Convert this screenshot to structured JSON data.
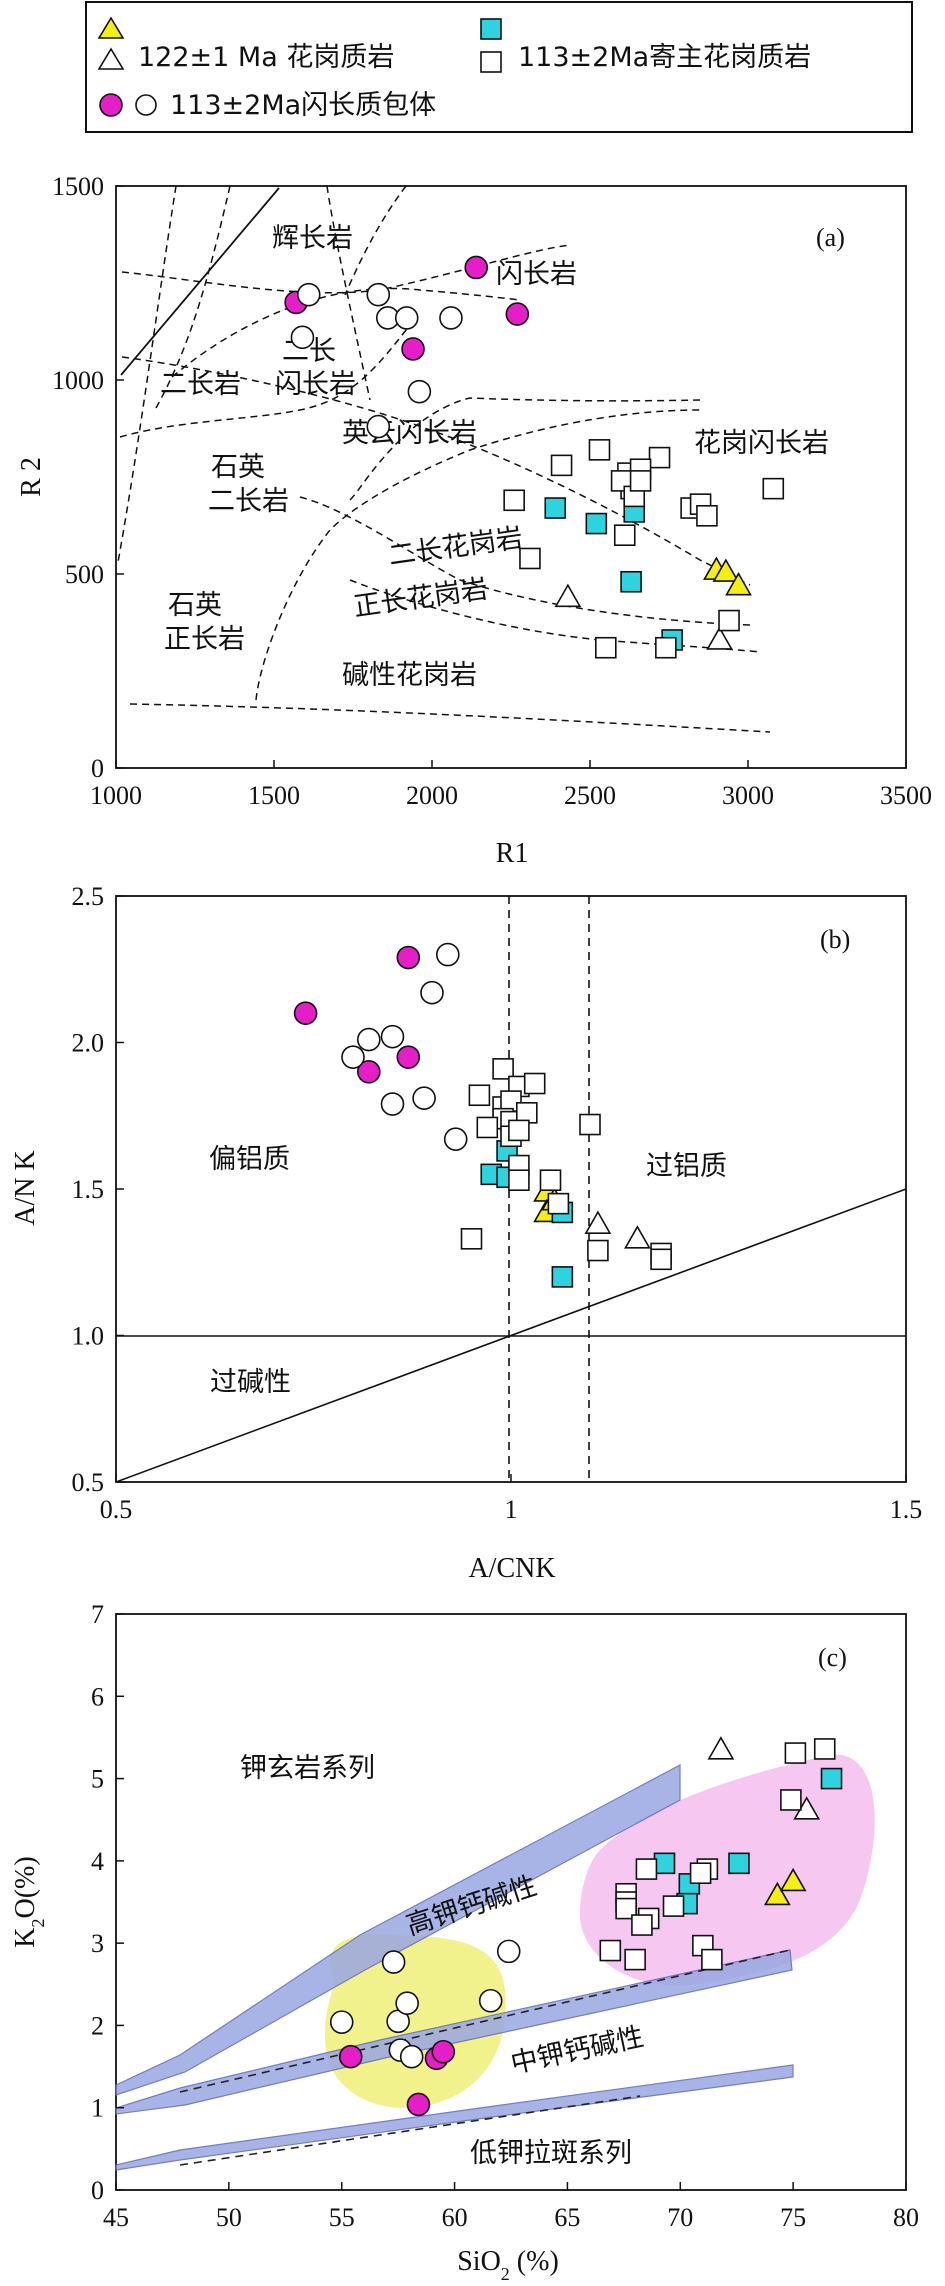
{
  "legend": {
    "entries": [
      {
        "id": "g122",
        "label": "122±1 Ma 花岗质岩"
      },
      {
        "id": "g113",
        "label": "113±2Ma寄主花岗质岩"
      },
      {
        "id": "e113",
        "label": "113±2Ma闪长质包体"
      }
    ],
    "colors": {
      "triangle_fill": "#f5ee14",
      "square_fill": "#2ed3df",
      "circle_fill": "#e61ec8"
    }
  },
  "chart_data": [
    {
      "id": "a",
      "type": "scatter",
      "panel_label": "(a)",
      "xlabel": "R1",
      "ylabel": "R 2",
      "xlim": [
        1000,
        3500
      ],
      "ylim": [
        0,
        1500
      ],
      "xticks": [
        1000,
        1500,
        2000,
        2500,
        3000,
        3500
      ],
      "yticks": [
        0,
        500,
        1000,
        1500
      ],
      "regions": [
        "辉长岩",
        "闪长岩",
        "二长岩",
        "二长",
        "闪长岩",
        "英云闪长岩",
        "花岗闪长岩",
        "石英",
        "二长岩",
        "二长花岗岩",
        "正长花岗岩",
        "石英",
        "正长岩",
        "碱性花岗岩"
      ],
      "series": [
        {
          "name": "122±1 Ma 花岗质岩 (filled)",
          "marker": "triangle",
          "filled": true,
          "points": [
            [
              2900,
              510
            ],
            [
              2930,
              505
            ],
            [
              2970,
              470
            ]
          ]
        },
        {
          "name": "122±1 Ma 花岗质岩 (open)",
          "marker": "triangle",
          "filled": false,
          "points": [
            [
              2430,
              440
            ],
            [
              2910,
              330
            ]
          ]
        },
        {
          "name": "113±2Ma寄主花岗质岩 (filled)",
          "marker": "square",
          "filled": true,
          "points": [
            [
              2390,
              670
            ],
            [
              2520,
              630
            ],
            [
              2640,
              660
            ],
            [
              2630,
              480
            ],
            [
              2760,
              330
            ]
          ]
        },
        {
          "name": "113±2Ma寄主花岗质岩 (open)",
          "marker": "square",
          "filled": false,
          "points": [
            [
              2530,
              820
            ],
            [
              2720,
              800
            ],
            [
              2410,
              780
            ],
            [
              2620,
              760
            ],
            [
              2660,
              770
            ],
            [
              2630,
              720
            ],
            [
              2600,
              740
            ],
            [
              2640,
              700
            ],
            [
              2660,
              740
            ],
            [
              2820,
              670
            ],
            [
              2850,
              680
            ],
            [
              2870,
              650
            ],
            [
              3080,
              720
            ],
            [
              2260,
              690
            ],
            [
              2310,
              540
            ],
            [
              2610,
              600
            ],
            [
              2940,
              380
            ],
            [
              2550,
              310
            ],
            [
              2740,
              310
            ]
          ]
        },
        {
          "name": "113±2Ma闪长质包体 (filled)",
          "marker": "circle",
          "filled": true,
          "points": [
            [
              1570,
              1200
            ],
            [
              2140,
              1290
            ],
            [
              2270,
              1170
            ],
            [
              1940,
              1080
            ]
          ]
        },
        {
          "name": "113±2Ma闪长质包体 (open)",
          "marker": "circle",
          "filled": false,
          "points": [
            [
              1610,
              1220
            ],
            [
              1830,
              1220
            ],
            [
              1860,
              1160
            ],
            [
              1920,
              1160
            ],
            [
              2060,
              1160
            ],
            [
              1590,
              1110
            ],
            [
              1960,
              970
            ],
            [
              1830,
              880
            ]
          ]
        }
      ]
    },
    {
      "id": "b",
      "type": "scatter",
      "panel_label": "(b)",
      "xlabel": "A/CNK",
      "ylabel": "A/N K",
      "xlim": [
        0.5,
        1.5
      ],
      "ylim": [
        0.5,
        2.5
      ],
      "xticks": [
        0.5,
        1.0,
        1.5
      ],
      "yticks": [
        0.5,
        1.0,
        1.5,
        2.0,
        2.5
      ],
      "regions": [
        "偏铝质",
        "过铝质",
        "过碱性"
      ],
      "series": [
        {
          "name": "122±1 Ma 花岗质岩 (filled)",
          "marker": "triangle",
          "filled": true,
          "points": [
            [
              1.045,
              1.49
            ],
            [
              1.045,
              1.42
            ],
            [
              1.055,
              1.46
            ]
          ]
        },
        {
          "name": "122±1 Ma 花岗质岩 (open)",
          "marker": "triangle",
          "filled": false,
          "points": [
            [
              1.11,
              1.38
            ],
            [
              1.16,
              1.33
            ]
          ]
        },
        {
          "name": "113±2Ma寄主花岗质岩 (filled)",
          "marker": "square",
          "filled": true,
          "points": [
            [
              0.995,
              1.63
            ],
            [
              0.975,
              1.55
            ],
            [
              0.995,
              1.54
            ],
            [
              1.065,
              1.42
            ],
            [
              1.065,
              1.2
            ]
          ]
        },
        {
          "name": "113±2Ma寄主花岗质岩 (open)",
          "marker": "square",
          "filled": false,
          "points": [
            [
              0.99,
              1.91
            ],
            [
              0.96,
              1.82
            ],
            [
              1.01,
              1.85
            ],
            [
              1.03,
              1.86
            ],
            [
              0.99,
              1.78
            ],
            [
              1.0,
              1.8
            ],
            [
              0.99,
              1.74
            ],
            [
              1.0,
              1.73
            ],
            [
              0.97,
              1.71
            ],
            [
              1.02,
              1.76
            ],
            [
              1.0,
              1.68
            ],
            [
              1.01,
              1.7
            ],
            [
              1.01,
              1.58
            ],
            [
              1.01,
              1.53
            ],
            [
              1.05,
              1.53
            ],
            [
              1.06,
              1.45
            ],
            [
              1.1,
              1.72
            ],
            [
              0.95,
              1.33
            ],
            [
              1.11,
              1.29
            ],
            [
              1.19,
              1.28
            ],
            [
              1.19,
              1.26
            ]
          ]
        },
        {
          "name": "113±2Ma闪长质包体 (filled)",
          "marker": "circle",
          "filled": true,
          "points": [
            [
              0.74,
              2.1
            ],
            [
              0.87,
              2.29
            ],
            [
              0.82,
              1.9
            ],
            [
              0.87,
              1.95
            ]
          ]
        },
        {
          "name": "113±2Ma闪长质包体 (open)",
          "marker": "circle",
          "filled": false,
          "points": [
            [
              0.92,
              2.3
            ],
            [
              0.9,
              2.17
            ],
            [
              0.82,
              2.01
            ],
            [
              0.85,
              2.02
            ],
            [
              0.8,
              1.95
            ],
            [
              0.89,
              1.81
            ],
            [
              0.85,
              1.79
            ],
            [
              0.93,
              1.67
            ]
          ]
        }
      ]
    },
    {
      "id": "c",
      "type": "scatter",
      "panel_label": "(c)",
      "xlabel": "SiO2 (%)",
      "ylabel": "K2O(%)",
      "xlim": [
        45,
        80
      ],
      "ylim": [
        0,
        7
      ],
      "xticks": [
        45,
        50,
        55,
        60,
        65,
        70,
        75,
        80
      ],
      "yticks": [
        0,
        1,
        2,
        3,
        4,
        5,
        6,
        7
      ],
      "regions": [
        "钾玄岩系列",
        "高钾钙碱性",
        "中钾钙碱性",
        "低钾拉斑系列"
      ],
      "series": [
        {
          "name": "122±1 Ma 花岗质岩 (filled)",
          "marker": "triangle",
          "filled": true,
          "points": [
            [
              74.3,
              3.58
            ],
            [
              75.0,
              3.75
            ]
          ]
        },
        {
          "name": "122±1 Ma 花岗质岩 (open)",
          "marker": "triangle",
          "filled": false,
          "points": [
            [
              71.8,
              5.35
            ],
            [
              75.6,
              4.62
            ]
          ]
        },
        {
          "name": "113±2Ma寄主花岗质岩 (filled)",
          "marker": "square",
          "filled": true,
          "points": [
            [
              69.3,
              3.97
            ],
            [
              70.4,
              3.72
            ],
            [
              70.3,
              3.48
            ],
            [
              72.6,
              3.97
            ],
            [
              76.7,
              5.0
            ]
          ]
        },
        {
          "name": "113±2Ma寄主花岗质岩 (open)",
          "marker": "square",
          "filled": false,
          "points": [
            [
              75.1,
              5.31
            ],
            [
              76.4,
              5.36
            ],
            [
              74.9,
              4.74
            ],
            [
              68.5,
              3.9
            ],
            [
              67.6,
              3.6
            ],
            [
              67.6,
              3.5
            ],
            [
              67.6,
              3.42
            ],
            [
              69.7,
              3.45
            ],
            [
              71.2,
              3.9
            ],
            [
              70.9,
              3.85
            ],
            [
              68.6,
              3.3
            ],
            [
              68.3,
              3.22
            ],
            [
              66.9,
              2.91
            ],
            [
              68.0,
              2.8
            ],
            [
              71.0,
              2.97
            ],
            [
              71.4,
              2.8
            ]
          ]
        },
        {
          "name": "113±2Ma闪长质包体 (filled)",
          "marker": "circle",
          "filled": true,
          "points": [
            [
              55.4,
              1.62
            ],
            [
              59.2,
              1.6
            ],
            [
              59.5,
              1.68
            ],
            [
              58.4,
              1.04
            ]
          ]
        },
        {
          "name": "113±2Ma闪长质包体 (open)",
          "marker": "circle",
          "filled": false,
          "points": [
            [
              57.3,
              2.77
            ],
            [
              62.4,
              2.9
            ],
            [
              55.0,
              2.04
            ],
            [
              57.5,
              2.05
            ],
            [
              57.9,
              2.27
            ],
            [
              61.6,
              2.3
            ],
            [
              57.6,
              1.7
            ],
            [
              58.1,
              1.62
            ]
          ]
        }
      ]
    }
  ]
}
